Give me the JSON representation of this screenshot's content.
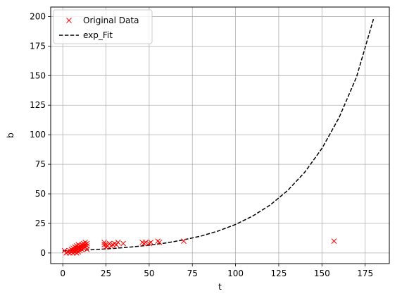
{
  "chart_data": {
    "type": "scatter",
    "xlabel": "t",
    "ylabel": "b",
    "xlim": [
      -7,
      189
    ],
    "ylim": [
      -9,
      208
    ],
    "xticks": [
      0,
      25,
      50,
      75,
      100,
      125,
      150,
      175
    ],
    "yticks": [
      0,
      25,
      50,
      75,
      100,
      125,
      150,
      175,
      200
    ],
    "grid": true,
    "legend_position": "top-left",
    "series": [
      {
        "name": "Original Data",
        "kind": "scatter",
        "marker": "x",
        "color": "#ff0000",
        "points": [
          [
            1,
            2
          ],
          [
            2,
            0
          ],
          [
            3,
            1
          ],
          [
            4,
            0
          ],
          [
            4,
            2
          ],
          [
            5,
            1
          ],
          [
            5,
            3
          ],
          [
            6,
            0
          ],
          [
            6,
            2
          ],
          [
            6,
            4
          ],
          [
            7,
            1
          ],
          [
            7,
            3
          ],
          [
            7,
            5
          ],
          [
            8,
            0
          ],
          [
            8,
            2
          ],
          [
            8,
            4
          ],
          [
            8,
            6
          ],
          [
            9,
            1
          ],
          [
            9,
            3
          ],
          [
            9,
            5
          ],
          [
            9,
            7
          ],
          [
            10,
            2
          ],
          [
            10,
            4
          ],
          [
            10,
            6
          ],
          [
            11,
            3
          ],
          [
            11,
            5
          ],
          [
            11,
            7
          ],
          [
            12,
            4
          ],
          [
            12,
            6
          ],
          [
            12,
            8
          ],
          [
            13,
            5
          ],
          [
            13,
            7
          ],
          [
            13,
            9
          ],
          [
            14,
            6
          ],
          [
            14,
            8
          ],
          [
            14,
            3
          ],
          [
            24,
            7
          ],
          [
            24,
            9
          ],
          [
            25,
            5
          ],
          [
            25,
            7
          ],
          [
            26,
            6
          ],
          [
            27,
            8
          ],
          [
            28,
            6
          ],
          [
            29,
            7
          ],
          [
            30,
            8
          ],
          [
            31,
            7
          ],
          [
            32,
            9
          ],
          [
            35,
            8
          ],
          [
            46,
            9
          ],
          [
            47,
            8
          ],
          [
            48,
            9
          ],
          [
            50,
            8
          ],
          [
            51,
            9
          ],
          [
            55,
            10
          ],
          [
            56,
            9
          ],
          [
            70,
            10
          ],
          [
            157,
            10
          ]
        ]
      },
      {
        "name": "exp_Fit",
        "kind": "line",
        "style": "dashed",
        "color": "#000000",
        "x": [
          0,
          10,
          20,
          30,
          40,
          50,
          60,
          70,
          80,
          90,
          100,
          110,
          120,
          130,
          140,
          150,
          160,
          170,
          180
        ],
        "y": [
          1.8,
          2.3,
          3.0,
          3.9,
          5.1,
          6.6,
          8.5,
          11.1,
          14.3,
          18.6,
          24.1,
          31.3,
          40.5,
          52.6,
          68.2,
          88.4,
          114.7,
          148.8,
          198.7
        ]
      }
    ]
  }
}
